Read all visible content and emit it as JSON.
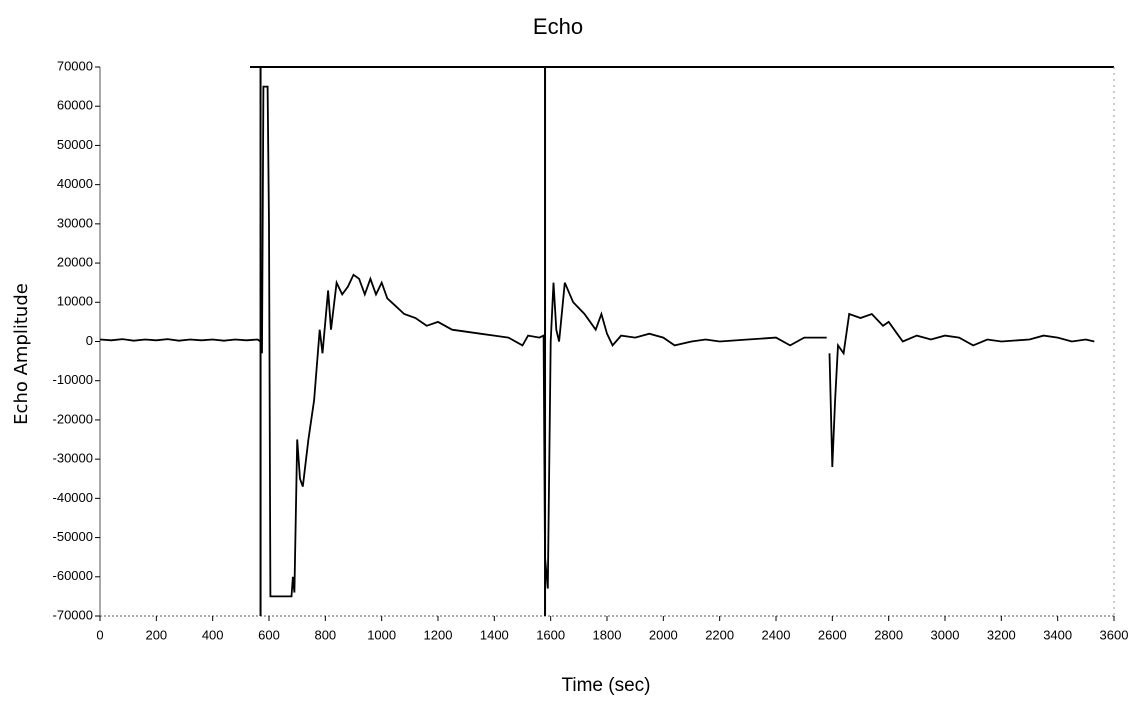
{
  "chart_data": {
    "type": "line",
    "title": "Echo",
    "x_label": "Time (sec)",
    "y_label": "Echo Amplitude",
    "x": [
      0,
      40,
      80,
      120,
      160,
      200,
      240,
      280,
      320,
      360,
      400,
      440,
      480,
      520,
      560,
      570,
      575,
      580,
      595,
      600,
      605,
      680,
      685,
      690,
      700,
      710,
      720,
      740,
      760,
      780,
      790,
      810,
      820,
      840,
      860,
      880,
      900,
      920,
      940,
      960,
      980,
      1000,
      1020,
      1050,
      1080,
      1120,
      1160,
      1200,
      1250,
      1300,
      1350,
      1400,
      1450,
      1500,
      1520,
      1560,
      1575,
      1580,
      1590,
      1600,
      1610,
      1620,
      1630,
      1650,
      1680,
      1720,
      1760,
      1780,
      1800,
      1820,
      1850,
      1900,
      1950,
      2000,
      2040,
      2100,
      2150,
      2200,
      2300,
      2400,
      2450,
      2500,
      2580,
      2585,
      2590,
      2600,
      2610,
      2620,
      2640,
      2660,
      2700,
      2740,
      2780,
      2800,
      2830,
      2850,
      2900,
      2950,
      3000,
      3050,
      3100,
      3150,
      3200,
      3300,
      3350,
      3400,
      3450,
      3500,
      3530
    ],
    "series": [
      {
        "name": "Echo",
        "color": "#000000",
        "values": [
          500,
          300,
          600,
          200,
          500,
          300,
          600,
          200,
          500,
          300,
          500,
          200,
          500,
          300,
          500,
          0,
          -3000,
          65000,
          65000,
          30000,
          -65000,
          -65000,
          -60000,
          -64000,
          -25000,
          -35000,
          -37000,
          -25000,
          -15000,
          3000,
          -3000,
          13000,
          3000,
          15000,
          12000,
          14000,
          17000,
          16000,
          12000,
          16000,
          12000,
          15000,
          11000,
          9000,
          7000,
          6000,
          4000,
          5000,
          3000,
          2500,
          2000,
          1500,
          1000,
          -1000,
          1500,
          1000,
          1500,
          -55000,
          -63000,
          0,
          15000,
          3000,
          0,
          15000,
          10000,
          7000,
          3000,
          7000,
          2000,
          -1000,
          1500,
          1000,
          2000,
          1000,
          -1000,
          0,
          500,
          0,
          500,
          1000,
          -1000,
          1000,
          1000,
          null,
          -3000,
          -32000,
          -15000,
          -1000,
          -3000,
          7000,
          6000,
          7000,
          4000,
          5000,
          2000,
          0,
          1500,
          500,
          1500,
          1000,
          -1000,
          500,
          0,
          500,
          1500,
          1000,
          0,
          500,
          0
        ]
      }
    ],
    "vlines": [
      570,
      1580
    ],
    "xlim": [
      0,
      3600
    ],
    "xticks": [
      0,
      200,
      400,
      600,
      800,
      1000,
      1200,
      1400,
      1600,
      1800,
      2000,
      2200,
      2400,
      2600,
      2800,
      3000,
      3200,
      3400,
      3600
    ],
    "ylim": [
      -70000,
      70000
    ],
    "yticks": [
      -70000,
      -60000,
      -50000,
      -40000,
      -30000,
      -20000,
      -10000,
      0,
      10000,
      20000,
      30000,
      40000,
      50000,
      60000,
      70000
    ]
  }
}
